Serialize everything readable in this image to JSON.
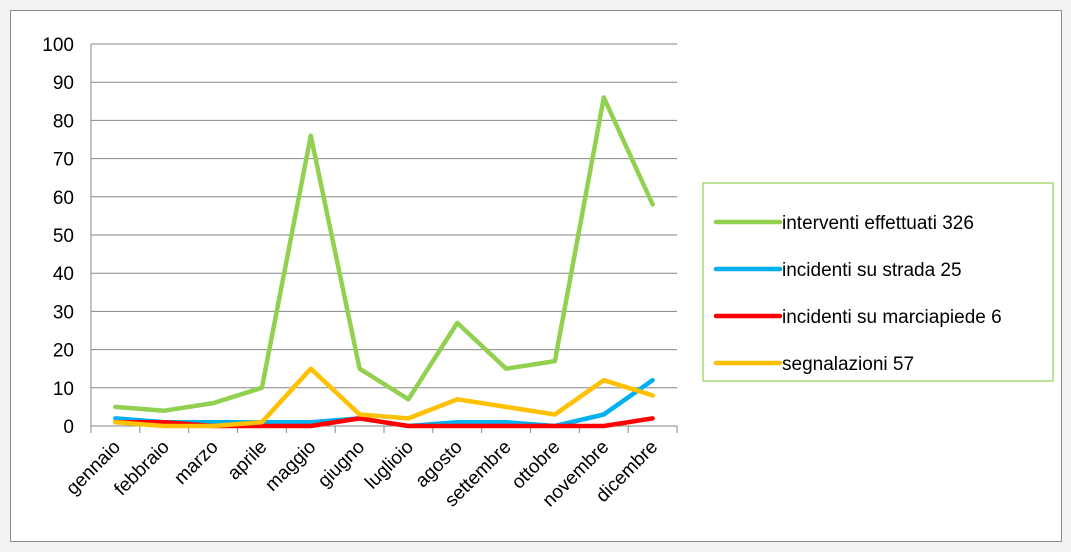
{
  "chart_data": {
    "type": "line",
    "categories": [
      "gennaio",
      "febbraio",
      "marzo",
      "aprile",
      "maggio",
      "giugno",
      "luglioio",
      "agosto",
      "settembre",
      "ottobre",
      "novembre",
      "dicembre"
    ],
    "ylim": [
      0,
      100
    ],
    "yticks": [
      0,
      10,
      20,
      30,
      40,
      50,
      60,
      70,
      80,
      90,
      100
    ],
    "grid": true,
    "legend_position": "right",
    "series": [
      {
        "name": "interventi effettuati 326",
        "color": "#92d050",
        "values": [
          5,
          4,
          6,
          10,
          76,
          15,
          7,
          27,
          15,
          17,
          86,
          58
        ]
      },
      {
        "name": "incidenti su strada  25",
        "color": "#00b0f0",
        "values": [
          2,
          1,
          1,
          1,
          1,
          2,
          0,
          1,
          1,
          0,
          3,
          12
        ]
      },
      {
        "name": "incidenti su marciapiede 6",
        "color": "#ff0000",
        "values": [
          1,
          1,
          0,
          0,
          0,
          2,
          0,
          0,
          0,
          0,
          0,
          2
        ]
      },
      {
        "name": "segnalazioni  57",
        "color": "#ffc000",
        "values": [
          1,
          0,
          0,
          1,
          15,
          3,
          2,
          7,
          5,
          3,
          12,
          8
        ]
      }
    ]
  }
}
